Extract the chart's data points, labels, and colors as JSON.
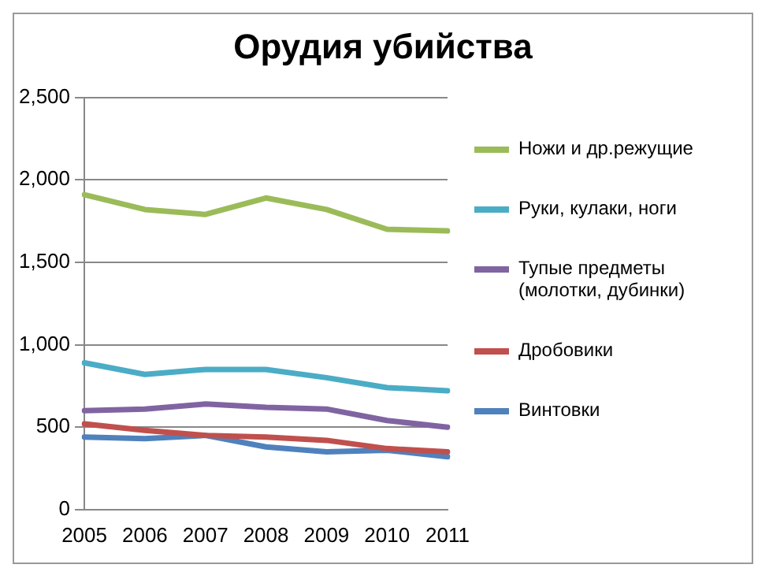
{
  "chart_data": {
    "type": "line",
    "title": "Орудия убийства",
    "categories": [
      "2005",
      "2006",
      "2007",
      "2008",
      "2009",
      "2010",
      "2011"
    ],
    "series": [
      {
        "name": "Ножи и др.режущие",
        "color": "#9bbb59",
        "values": [
          1910,
          1820,
          1790,
          1890,
          1820,
          1700,
          1690
        ]
      },
      {
        "name": "Руки, кулаки, ноги",
        "color": "#4bacc6",
        "values": [
          890,
          820,
          850,
          850,
          800,
          740,
          720
        ]
      },
      {
        "name": "Тупые предметы (молотки, дубинки)",
        "color": "#8064a2",
        "values": [
          600,
          610,
          640,
          620,
          610,
          540,
          500
        ]
      },
      {
        "name": "Дробовики",
        "color": "#c0504d",
        "values": [
          520,
          480,
          450,
          440,
          420,
          370,
          350
        ]
      },
      {
        "name": "Винтовки",
        "color": "#4f81bd",
        "values": [
          440,
          430,
          450,
          380,
          350,
          360,
          320
        ]
      }
    ],
    "ylim": [
      0,
      2500
    ],
    "yticks": [
      {
        "value": 0,
        "label": "0"
      },
      {
        "value": 500,
        "label": "500"
      },
      {
        "value": 1000,
        "label": "1,000"
      },
      {
        "value": 1500,
        "label": "1,500"
      },
      {
        "value": 2000,
        "label": "2,000"
      },
      {
        "value": 2500,
        "label": "2,500"
      }
    ],
    "grid": "y",
    "legend": "right",
    "marker": "none",
    "line_style": "solid"
  }
}
